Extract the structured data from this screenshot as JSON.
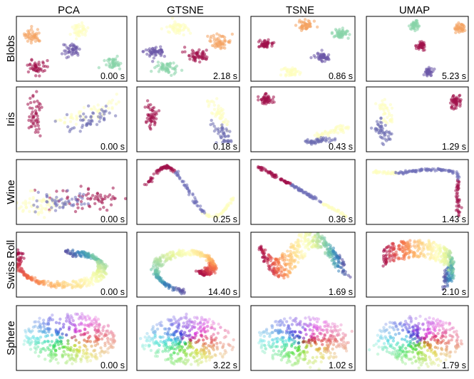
{
  "chart_data": {
    "type": "scatter",
    "columns": [
      "PCA",
      "GTSNE",
      "TSNE",
      "UMAP"
    ],
    "rows": [
      "Blobs",
      "Iris",
      "Wine",
      "Swiss Roll",
      "Sphere"
    ],
    "timings": [
      [
        "0.00 s",
        "2.18 s",
        "0.86 s",
        "5.23 s"
      ],
      [
        "0.00 s",
        "0.18 s",
        "0.43 s",
        "1.29 s"
      ],
      [
        "0.00 s",
        "0.25 s",
        "0.36 s",
        "1.43 s"
      ],
      [
        "0.00 s",
        "14.40 s",
        "1.69 s",
        "2.10 s"
      ],
      [
        "0.00 s",
        "3.22 s",
        "1.02 s",
        "1.79 s"
      ]
    ],
    "axis_ticks": "none",
    "point_alpha": 0.55,
    "colors": {
      "palette": [
        "#9e0142",
        "#d53e4f",
        "#f46d43",
        "#fdae61",
        "#fee08b",
        "#ffffbf",
        "#e6f598",
        "#abdda4",
        "#66c2a5",
        "#3288bd",
        "#5e4fa2"
      ],
      "blobs": [
        "#f4a261",
        "#fefebe",
        "#6b58a8",
        "#86d3a8",
        "#a0104a"
      ],
      "iris": [
        "#a0104a",
        "#fefebe",
        "#6b6bb0"
      ],
      "wine": [
        "#a0104a",
        "#fefebe",
        "#7070b8"
      ],
      "frame": "#000000"
    }
  }
}
